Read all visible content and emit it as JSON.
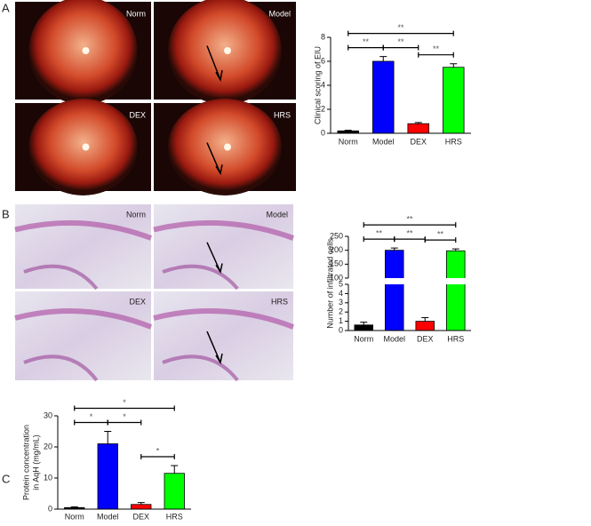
{
  "figure": {
    "panels": [
      {
        "label": "A",
        "images": [
          "Norm",
          "Model",
          "DEX",
          "HRS"
        ]
      },
      {
        "label": "B",
        "images": [
          "Norm",
          "Model",
          "DEX",
          "HRS"
        ]
      },
      {
        "label": "C"
      }
    ]
  },
  "chart_data": [
    {
      "type": "bar",
      "ylabel": "Clinical scoring of EIU",
      "categories": [
        "Norm",
        "Model",
        "DEX",
        "HRS"
      ],
      "values": [
        0.2,
        6.0,
        0.8,
        5.5
      ],
      "errors": [
        0.05,
        0.4,
        0.1,
        0.3
      ],
      "colors": [
        "#000000",
        "#0000ff",
        "#ff0000",
        "#00ff00"
      ],
      "ylim": [
        0,
        8
      ],
      "yticks": [
        0,
        2,
        4,
        6,
        8
      ],
      "significance": [
        {
          "pair": [
            0,
            3
          ],
          "label": "**"
        },
        {
          "pair": [
            0,
            1
          ],
          "label": "**"
        },
        {
          "pair": [
            1,
            2
          ],
          "label": "**"
        },
        {
          "pair": [
            2,
            3
          ],
          "label": "**"
        }
      ]
    },
    {
      "type": "bar",
      "ylabel": "Number of infiltrated cells",
      "categories": [
        "Norm",
        "Model",
        "DEX",
        "HRS"
      ],
      "values": [
        0.6,
        200,
        1.0,
        198
      ],
      "errors": [
        0.3,
        8,
        0.4,
        7
      ],
      "colors": [
        "#000000",
        "#0000ff",
        "#ff0000",
        "#00ff00"
      ],
      "ylim": [
        0,
        250
      ],
      "ybreak": [
        5,
        100
      ],
      "yticks": [
        0,
        1,
        2,
        3,
        4,
        5,
        100,
        150,
        200,
        250
      ],
      "significance": [
        {
          "pair": [
            0,
            3
          ],
          "label": "**"
        },
        {
          "pair": [
            0,
            1
          ],
          "label": "**"
        },
        {
          "pair": [
            1,
            2
          ],
          "label": "**"
        },
        {
          "pair": [
            2,
            3
          ],
          "label": "**"
        }
      ]
    },
    {
      "type": "bar",
      "ylabel": [
        "Protein concentration",
        "in AqH (mg/mL)"
      ],
      "categories": [
        "Norm",
        "Model",
        "DEX",
        "HRS"
      ],
      "values": [
        0.5,
        21,
        1.5,
        11.5
      ],
      "errors": [
        0.2,
        4,
        0.6,
        2.5
      ],
      "colors": [
        "#000000",
        "#0000ff",
        "#ff0000",
        "#00ff00"
      ],
      "ylim": [
        0,
        30
      ],
      "yticks": [
        0,
        10,
        20,
        30
      ],
      "significance": [
        {
          "pair": [
            0,
            3
          ],
          "label": "*"
        },
        {
          "pair": [
            0,
            1
          ],
          "label": "*"
        },
        {
          "pair": [
            1,
            2
          ],
          "label": "*"
        },
        {
          "pair": [
            2,
            3
          ],
          "label": "*"
        }
      ]
    }
  ]
}
